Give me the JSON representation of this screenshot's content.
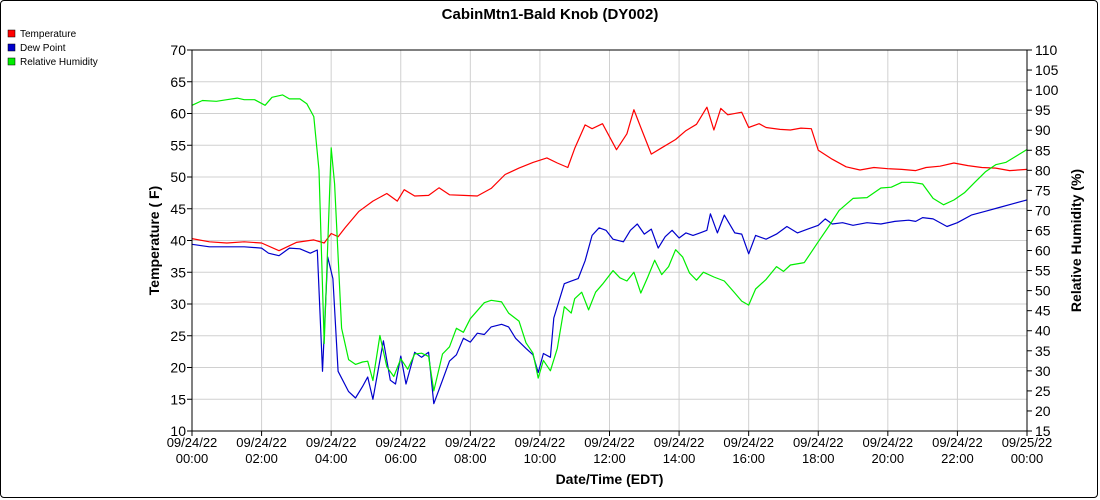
{
  "chart_data": {
    "type": "line",
    "title": "CabinMtn1-Bald Knob (DY002)",
    "xlabel": "Date/Time (EDT)",
    "ylabel": "Temperature ( F)",
    "y2label": "Relative Humidity (%)",
    "ylim": [
      10,
      70
    ],
    "y2lim": [
      15,
      110
    ],
    "xlim": [
      0,
      24
    ],
    "grid": true,
    "legend_position": "top-left",
    "x_ticks": [
      {
        "hour": 0,
        "label1": "09/24/22",
        "label2": "00:00"
      },
      {
        "hour": 2,
        "label1": "09/24/22",
        "label2": "02:00"
      },
      {
        "hour": 4,
        "label1": "09/24/22",
        "label2": "04:00"
      },
      {
        "hour": 6,
        "label1": "09/24/22",
        "label2": "06:00"
      },
      {
        "hour": 8,
        "label1": "09/24/22",
        "label2": "08:00"
      },
      {
        "hour": 10,
        "label1": "09/24/22",
        "label2": "10:00"
      },
      {
        "hour": 12,
        "label1": "09/24/22",
        "label2": "12:00"
      },
      {
        "hour": 14,
        "label1": "09/24/22",
        "label2": "14:00"
      },
      {
        "hour": 16,
        "label1": "09/24/22",
        "label2": "16:00"
      },
      {
        "hour": 18,
        "label1": "09/24/22",
        "label2": "18:00"
      },
      {
        "hour": 20,
        "label1": "09/24/22",
        "label2": "20:00"
      },
      {
        "hour": 22,
        "label1": "09/24/22",
        "label2": "22:00"
      },
      {
        "hour": 24,
        "label1": "09/25/22",
        "label2": "00:00"
      }
    ],
    "y_ticks": [
      10,
      15,
      20,
      25,
      30,
      35,
      40,
      45,
      50,
      55,
      60,
      65,
      70
    ],
    "y2_ticks": [
      15,
      20,
      25,
      30,
      35,
      40,
      45,
      50,
      55,
      60,
      65,
      70,
      75,
      80,
      85,
      90,
      95,
      100,
      105,
      110
    ],
    "series": [
      {
        "name": "Temperature",
        "axis": "left",
        "color": "#ff0000",
        "points": [
          [
            0,
            40.3
          ],
          [
            0.5,
            39.8
          ],
          [
            1,
            39.6
          ],
          [
            1.5,
            39.8
          ],
          [
            2,
            39.6
          ],
          [
            2.5,
            38.4
          ],
          [
            3,
            39.7
          ],
          [
            3.5,
            40.1
          ],
          [
            3.8,
            39.6
          ],
          [
            4,
            41.1
          ],
          [
            4.2,
            40.6
          ],
          [
            4.4,
            42.0
          ],
          [
            4.8,
            44.6
          ],
          [
            5.2,
            46.2
          ],
          [
            5.6,
            47.4
          ],
          [
            5.9,
            46.2
          ],
          [
            6.1,
            48.0
          ],
          [
            6.4,
            47.0
          ],
          [
            6.8,
            47.1
          ],
          [
            7.1,
            48.3
          ],
          [
            7.4,
            47.2
          ],
          [
            7.8,
            47.1
          ],
          [
            8.2,
            47.0
          ],
          [
            8.6,
            48.2
          ],
          [
            9.0,
            50.4
          ],
          [
            9.4,
            51.4
          ],
          [
            9.8,
            52.3
          ],
          [
            10.2,
            53.0
          ],
          [
            10.5,
            52.2
          ],
          [
            10.8,
            51.5
          ],
          [
            11.0,
            54.5
          ],
          [
            11.3,
            58.2
          ],
          [
            11.5,
            57.6
          ],
          [
            11.8,
            58.4
          ],
          [
            12.2,
            54.3
          ],
          [
            12.5,
            56.8
          ],
          [
            12.7,
            60.6
          ],
          [
            12.9,
            57.8
          ],
          [
            13.2,
            53.6
          ],
          [
            13.5,
            54.6
          ],
          [
            13.9,
            55.9
          ],
          [
            14.2,
            57.3
          ],
          [
            14.5,
            58.3
          ],
          [
            14.8,
            61.0
          ],
          [
            15.0,
            57.4
          ],
          [
            15.2,
            60.8
          ],
          [
            15.4,
            59.8
          ],
          [
            15.8,
            60.2
          ],
          [
            16.0,
            57.8
          ],
          [
            16.3,
            58.4
          ],
          [
            16.5,
            57.8
          ],
          [
            16.9,
            57.5
          ],
          [
            17.2,
            57.4
          ],
          [
            17.5,
            57.7
          ],
          [
            17.8,
            57.6
          ],
          [
            18.0,
            54.2
          ],
          [
            18.4,
            52.8
          ],
          [
            18.8,
            51.6
          ],
          [
            19.2,
            51.1
          ],
          [
            19.6,
            51.5
          ],
          [
            20.0,
            51.3
          ],
          [
            20.4,
            51.2
          ],
          [
            20.8,
            51.0
          ],
          [
            21.1,
            51.5
          ],
          [
            21.5,
            51.7
          ],
          [
            21.9,
            52.2
          ],
          [
            22.3,
            51.8
          ],
          [
            22.7,
            51.5
          ],
          [
            23.1,
            51.4
          ],
          [
            23.5,
            51.0
          ],
          [
            24.0,
            51.2
          ]
        ]
      },
      {
        "name": "Dew Point",
        "axis": "left",
        "color": "#0000cc",
        "points": [
          [
            0,
            39.4
          ],
          [
            0.5,
            39.0
          ],
          [
            1,
            39.0
          ],
          [
            1.5,
            39.0
          ],
          [
            2,
            38.8
          ],
          [
            2.2,
            38.0
          ],
          [
            2.5,
            37.6
          ],
          [
            2.8,
            38.8
          ],
          [
            3.1,
            38.7
          ],
          [
            3.4,
            38.0
          ],
          [
            3.6,
            38.5
          ],
          [
            3.75,
            19.4
          ],
          [
            3.9,
            37.4
          ],
          [
            4.05,
            34.0
          ],
          [
            4.2,
            19.4
          ],
          [
            4.5,
            16.2
          ],
          [
            4.7,
            15.2
          ],
          [
            4.9,
            17.0
          ],
          [
            5.05,
            18.5
          ],
          [
            5.2,
            15.0
          ],
          [
            5.5,
            24.2
          ],
          [
            5.7,
            18.0
          ],
          [
            5.85,
            17.4
          ],
          [
            6.0,
            21.8
          ],
          [
            6.15,
            17.4
          ],
          [
            6.4,
            22.4
          ],
          [
            6.6,
            21.6
          ],
          [
            6.8,
            22.4
          ],
          [
            6.95,
            14.3
          ],
          [
            7.2,
            18.0
          ],
          [
            7.4,
            21.0
          ],
          [
            7.6,
            22.0
          ],
          [
            7.8,
            24.6
          ],
          [
            8.0,
            24.0
          ],
          [
            8.2,
            25.4
          ],
          [
            8.4,
            25.2
          ],
          [
            8.6,
            26.4
          ],
          [
            8.9,
            26.8
          ],
          [
            9.1,
            26.4
          ],
          [
            9.3,
            24.6
          ],
          [
            9.6,
            23.0
          ],
          [
            9.8,
            22.0
          ],
          [
            9.95,
            19.2
          ],
          [
            10.1,
            22.2
          ],
          [
            10.3,
            21.6
          ],
          [
            10.4,
            27.8
          ],
          [
            10.7,
            33.2
          ],
          [
            10.9,
            33.6
          ],
          [
            11.1,
            34.0
          ],
          [
            11.3,
            36.8
          ],
          [
            11.5,
            40.8
          ],
          [
            11.7,
            42.0
          ],
          [
            11.9,
            41.6
          ],
          [
            12.1,
            40.2
          ],
          [
            12.4,
            39.8
          ],
          [
            12.6,
            41.6
          ],
          [
            12.8,
            42.6
          ],
          [
            13.0,
            41.0
          ],
          [
            13.2,
            41.8
          ],
          [
            13.4,
            38.8
          ],
          [
            13.6,
            40.6
          ],
          [
            13.8,
            41.6
          ],
          [
            14.0,
            40.4
          ],
          [
            14.2,
            41.2
          ],
          [
            14.4,
            40.8
          ],
          [
            14.6,
            41.2
          ],
          [
            14.8,
            41.6
          ],
          [
            14.9,
            44.2
          ],
          [
            15.1,
            41.2
          ],
          [
            15.3,
            44.0
          ],
          [
            15.6,
            41.2
          ],
          [
            15.8,
            41.0
          ],
          [
            16.0,
            37.9
          ],
          [
            16.2,
            40.8
          ],
          [
            16.5,
            40.2
          ],
          [
            16.8,
            41.0
          ],
          [
            17.1,
            42.2
          ],
          [
            17.4,
            41.2
          ],
          [
            17.7,
            41.8
          ],
          [
            18.0,
            42.4
          ],
          [
            18.2,
            43.4
          ],
          [
            18.4,
            42.6
          ],
          [
            18.7,
            42.8
          ],
          [
            19.0,
            42.4
          ],
          [
            19.4,
            42.8
          ],
          [
            19.8,
            42.6
          ],
          [
            20.2,
            43.0
          ],
          [
            20.6,
            43.2
          ],
          [
            20.8,
            43.0
          ],
          [
            21.0,
            43.6
          ],
          [
            21.3,
            43.4
          ],
          [
            21.7,
            42.2
          ],
          [
            22.0,
            42.8
          ],
          [
            22.4,
            44.0
          ],
          [
            22.8,
            44.6
          ],
          [
            23.2,
            45.2
          ],
          [
            23.6,
            45.8
          ],
          [
            24.0,
            46.4
          ]
        ]
      },
      {
        "name": "Relative Humidity",
        "axis": "right",
        "color": "#00ee00",
        "points": [
          [
            0,
            96.2
          ],
          [
            0.3,
            97.4
          ],
          [
            0.7,
            97.2
          ],
          [
            1,
            97.6
          ],
          [
            1.3,
            98.0
          ],
          [
            1.5,
            97.6
          ],
          [
            1.8,
            97.6
          ],
          [
            2.1,
            96.2
          ],
          [
            2.3,
            98.2
          ],
          [
            2.6,
            98.8
          ],
          [
            2.8,
            97.8
          ],
          [
            3.1,
            97.8
          ],
          [
            3.3,
            96.6
          ],
          [
            3.5,
            93.4
          ],
          [
            3.65,
            80.0
          ],
          [
            3.8,
            36.8
          ],
          [
            4.0,
            85.6
          ],
          [
            4.1,
            76.6
          ],
          [
            4.3,
            40.6
          ],
          [
            4.5,
            32.8
          ],
          [
            4.7,
            31.6
          ],
          [
            4.9,
            32.2
          ],
          [
            5.05,
            32.4
          ],
          [
            5.2,
            27.6
          ],
          [
            5.4,
            38.8
          ],
          [
            5.6,
            31.0
          ],
          [
            5.8,
            28.6
          ],
          [
            6.0,
            33.0
          ],
          [
            6.2,
            30.4
          ],
          [
            6.4,
            34.2
          ],
          [
            6.6,
            34.4
          ],
          [
            6.8,
            33.6
          ],
          [
            6.95,
            25.0
          ],
          [
            7.2,
            34.2
          ],
          [
            7.4,
            36.0
          ],
          [
            7.6,
            40.6
          ],
          [
            7.8,
            39.6
          ],
          [
            8.0,
            43.0
          ],
          [
            8.2,
            45.0
          ],
          [
            8.4,
            47.0
          ],
          [
            8.6,
            47.6
          ],
          [
            8.9,
            47.2
          ],
          [
            9.1,
            44.4
          ],
          [
            9.4,
            42.4
          ],
          [
            9.6,
            37.0
          ],
          [
            9.8,
            34.4
          ],
          [
            9.95,
            28.2
          ],
          [
            10.1,
            32.6
          ],
          [
            10.3,
            30.0
          ],
          [
            10.5,
            35.6
          ],
          [
            10.7,
            46.0
          ],
          [
            10.9,
            44.4
          ],
          [
            11.0,
            48.0
          ],
          [
            11.2,
            49.6
          ],
          [
            11.4,
            45.2
          ],
          [
            11.6,
            49.6
          ],
          [
            11.8,
            51.6
          ],
          [
            12.1,
            55.0
          ],
          [
            12.3,
            53.2
          ],
          [
            12.5,
            52.4
          ],
          [
            12.7,
            54.6
          ],
          [
            12.9,
            49.4
          ],
          [
            13.1,
            53.4
          ],
          [
            13.3,
            57.6
          ],
          [
            13.5,
            54.0
          ],
          [
            13.7,
            56.0
          ],
          [
            13.9,
            60.2
          ],
          [
            14.1,
            58.4
          ],
          [
            14.3,
            54.4
          ],
          [
            14.5,
            52.6
          ],
          [
            14.7,
            54.6
          ],
          [
            15.0,
            53.4
          ],
          [
            15.3,
            52.4
          ],
          [
            15.6,
            49.4
          ],
          [
            15.8,
            47.4
          ],
          [
            16.0,
            46.4
          ],
          [
            16.2,
            50.4
          ],
          [
            16.5,
            52.8
          ],
          [
            16.8,
            56.0
          ],
          [
            17.0,
            54.8
          ],
          [
            17.2,
            56.4
          ],
          [
            17.6,
            57.0
          ],
          [
            18.0,
            62.2
          ],
          [
            18.3,
            66.0
          ],
          [
            18.6,
            70.0
          ],
          [
            19.0,
            73.0
          ],
          [
            19.4,
            73.2
          ],
          [
            19.8,
            75.6
          ],
          [
            20.1,
            75.8
          ],
          [
            20.4,
            77.0
          ],
          [
            20.7,
            77.0
          ],
          [
            21.0,
            76.6
          ],
          [
            21.3,
            73.0
          ],
          [
            21.6,
            71.4
          ],
          [
            21.9,
            72.6
          ],
          [
            22.2,
            74.4
          ],
          [
            22.5,
            77.0
          ],
          [
            22.8,
            79.6
          ],
          [
            23.1,
            81.4
          ],
          [
            23.4,
            82.0
          ],
          [
            23.7,
            83.6
          ],
          [
            24.0,
            85.2
          ]
        ]
      }
    ]
  }
}
